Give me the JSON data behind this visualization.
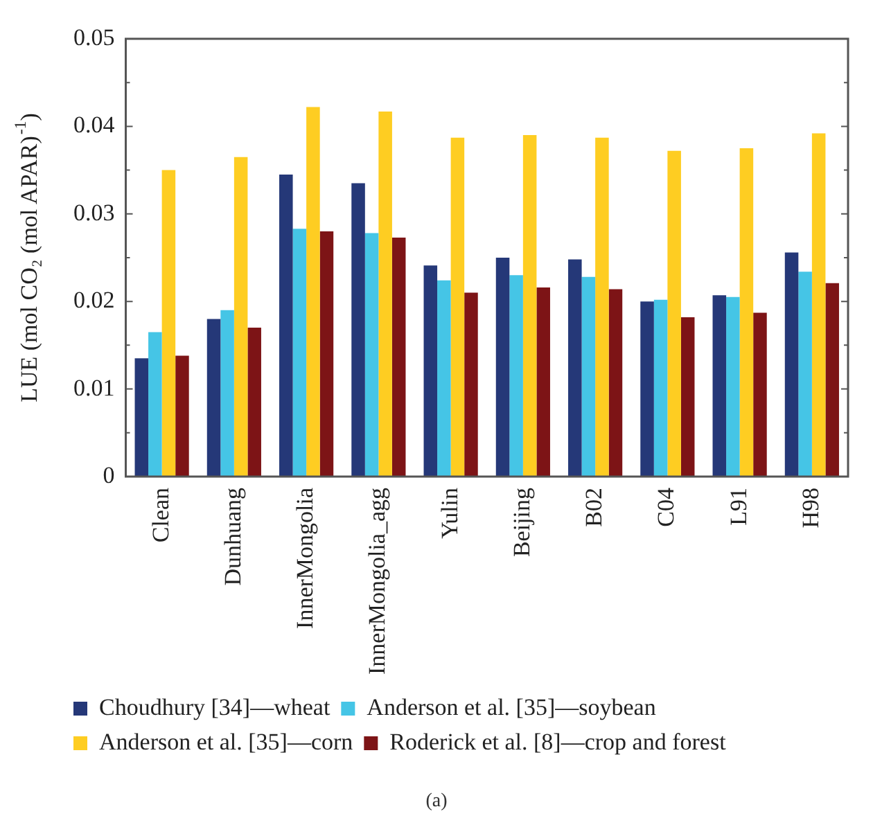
{
  "chart_data": {
    "type": "bar",
    "ylabel": "LUE (mol CO₂ (mol APAR)$^{-1}$)",
    "categories": [
      "Clean",
      "Dunhuang",
      "InnerMongolia",
      "InnerMongolia_agg",
      "Yulin",
      "Beijing",
      "B02",
      "C04",
      "L91",
      "H98"
    ],
    "series": [
      {
        "name": "Choudhury [34]—wheat",
        "color": "#253878",
        "values": [
          0.0135,
          0.018,
          0.0345,
          0.0335,
          0.0241,
          0.025,
          0.0248,
          0.02,
          0.0207,
          0.0256
        ]
      },
      {
        "name": "Anderson et al. [35]—soybean",
        "color": "#45c5e6",
        "values": [
          0.0165,
          0.019,
          0.0283,
          0.0278,
          0.0224,
          0.023,
          0.0228,
          0.0202,
          0.0205,
          0.0234
        ]
      },
      {
        "name": "Anderson et al. [35]—corn",
        "color": "#fecd22",
        "values": [
          0.035,
          0.0365,
          0.0422,
          0.0417,
          0.0387,
          0.039,
          0.0387,
          0.0372,
          0.0375,
          0.0392
        ]
      },
      {
        "name": "Roderick et al. [8]—crop and forest",
        "color": "#7d1416",
        "values": [
          0.0138,
          0.017,
          0.028,
          0.0273,
          0.021,
          0.0216,
          0.0214,
          0.0182,
          0.0187,
          0.0221
        ]
      }
    ],
    "ylim": [
      0,
      0.05
    ],
    "yticks": [
      0,
      {
        "value": 0.005,
        "label": null
      },
      0.01,
      {
        "value": 0.015,
        "label": null
      },
      0.02,
      {
        "value": 0.025,
        "label": null
      },
      0.03,
      {
        "value": 0.035,
        "label": null
      },
      0.04,
      {
        "value": 0.045,
        "label": null
      },
      0.05
    ],
    "grid": false,
    "legend": "bottom",
    "annotations": [
      "(a)"
    ]
  }
}
